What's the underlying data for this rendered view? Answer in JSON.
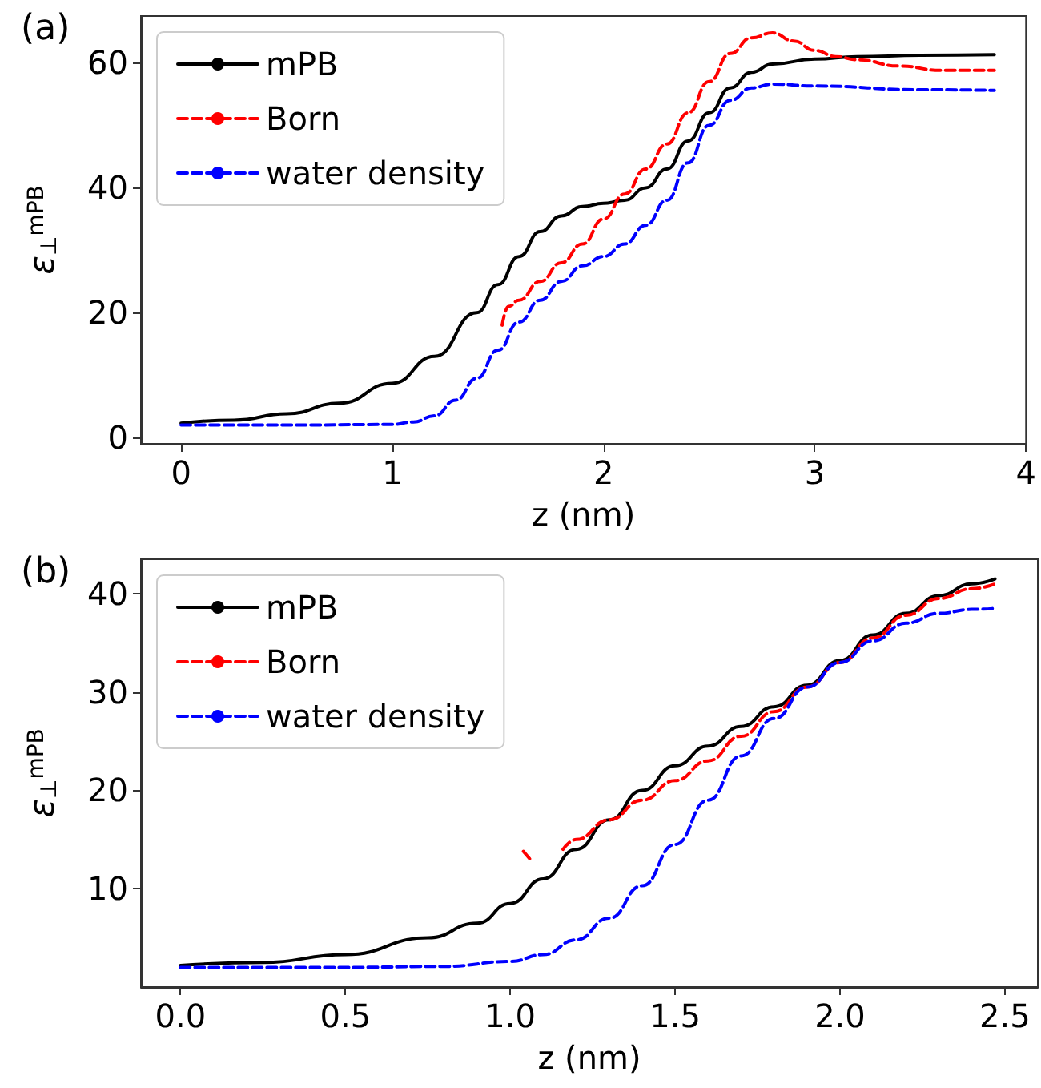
{
  "chart_data": [
    {
      "type": "line",
      "title": "(a)",
      "xlabel": "z (nm)",
      "ylabel": "ε$_{⊥}$$^{mPB}$",
      "xlim": [
        -0.19,
        4.0
      ],
      "ylim": [
        -1.0,
        67.5
      ],
      "xticks": [
        0,
        1,
        2,
        3,
        4
      ],
      "yticks": [
        0,
        20,
        40,
        60
      ],
      "grid": false,
      "legend": "top left",
      "marker": "none",
      "series": [
        {
          "name": "mPB",
          "color": "#000000",
          "line_style": "solid",
          "x": [
            0,
            0.25,
            0.5,
            0.75,
            1,
            1.2,
            1.4,
            1.5,
            1.6,
            1.7,
            1.8,
            1.9,
            2.0,
            2.1,
            2.2,
            2.3,
            2.4,
            2.5,
            2.6,
            2.7,
            2.8,
            3.0,
            3.2,
            3.5,
            3.85
          ],
          "values": [
            2.3,
            2.8,
            3.8,
            5.5,
            8.7,
            13,
            20,
            24.5,
            29,
            33,
            35.5,
            37,
            37.5,
            38,
            40,
            43,
            47.5,
            52,
            56,
            58.5,
            59.8,
            60.6,
            61,
            61.2,
            61.3
          ]
        },
        {
          "name": "Born",
          "color": "#ff0000",
          "line_style": "dashed",
          "x": [
            1.52,
            1.55,
            1.6,
            1.7,
            1.8,
            1.9,
            2.0,
            2.1,
            2.2,
            2.3,
            2.4,
            2.5,
            2.6,
            2.7,
            2.8,
            2.9,
            3.0,
            3.1,
            3.2,
            3.4,
            3.6,
            3.85
          ],
          "values": [
            18,
            21,
            22,
            25,
            28,
            31,
            35,
            39,
            43,
            47,
            52,
            57,
            61.5,
            64,
            64.8,
            63.5,
            62,
            61,
            60.5,
            59.5,
            58.8,
            58.8
          ]
        },
        {
          "name": "water density",
          "color": "#0000ff",
          "line_style": "dashed",
          "x": [
            0,
            0.5,
            1,
            1.1,
            1.2,
            1.3,
            1.4,
            1.5,
            1.6,
            1.7,
            1.8,
            1.9,
            2.0,
            2.1,
            2.2,
            2.3,
            2.4,
            2.5,
            2.6,
            2.7,
            2.8,
            3.0,
            3.5,
            3.85
          ],
          "values": [
            2,
            2,
            2.1,
            2.5,
            3.5,
            6,
            9.5,
            14,
            18.5,
            22,
            25,
            27.5,
            29,
            31,
            34,
            38,
            44,
            50,
            54,
            56,
            56.6,
            56.3,
            55.7,
            55.6
          ]
        }
      ]
    },
    {
      "type": "line",
      "title": "(b)",
      "xlabel": "z (nm)",
      "ylabel": "ε$_{⊥}$$^{mPB}$",
      "xlim": [
        -0.12,
        2.6
      ],
      "ylim": [
        0,
        43.5
      ],
      "xticks": [
        {
          "value": 0,
          "label": "0.0"
        },
        {
          "value": 0.5,
          "label": "0.5"
        },
        {
          "value": 1,
          "label": "1.0"
        },
        {
          "value": 1.5,
          "label": "1.5"
        },
        {
          "value": 2,
          "label": "2.0"
        },
        {
          "value": 2.5,
          "label": "2.5"
        }
      ],
      "yticks": [
        10,
        20,
        30,
        40
      ],
      "grid": false,
      "legend": "top left",
      "marker": "none",
      "series": [
        {
          "name": "mPB",
          "color": "#000000",
          "line_style": "solid",
          "x": [
            0,
            0.25,
            0.5,
            0.75,
            0.9,
            1.0,
            1.1,
            1.2,
            1.3,
            1.4,
            1.5,
            1.6,
            1.7,
            1.8,
            1.9,
            2.0,
            2.1,
            2.2,
            2.3,
            2.4,
            2.47
          ],
          "values": [
            2.2,
            2.5,
            3.3,
            5,
            6.5,
            8.5,
            11,
            14,
            17,
            20,
            22.5,
            24.5,
            26.5,
            28.5,
            30.7,
            33.2,
            35.8,
            38,
            39.8,
            41,
            41.5
          ]
        },
        {
          "name": "Born",
          "color": "#ff0000",
          "line_style": "dashed",
          "x": [
            1.04,
            1.06,
            1.1,
            1.16,
            1.2,
            1.3,
            1.4,
            1.5,
            1.6,
            1.7,
            1.8,
            1.9,
            2.0,
            2.1,
            2.2,
            2.3,
            2.4,
            2.47
          ],
          "values": [
            13.8,
            13.0,
            null,
            14,
            15,
            17,
            19,
            21,
            23,
            25.5,
            28,
            30.5,
            33,
            35.5,
            37.8,
            39.5,
            40.5,
            41
          ]
        },
        {
          "name": "water density",
          "color": "#0000ff",
          "line_style": "dashed",
          "x": [
            0,
            0.5,
            0.8,
            1.0,
            1.1,
            1.2,
            1.3,
            1.4,
            1.5,
            1.6,
            1.7,
            1.8,
            1.9,
            2.0,
            2.1,
            2.2,
            2.3,
            2.4,
            2.47
          ],
          "values": [
            2,
            2,
            2.1,
            2.6,
            3.3,
            4.8,
            7,
            10.3,
            14.5,
            19,
            23.5,
            27.3,
            30.5,
            33,
            35.2,
            37,
            38,
            38.4,
            38.5
          ]
        }
      ]
    }
  ]
}
